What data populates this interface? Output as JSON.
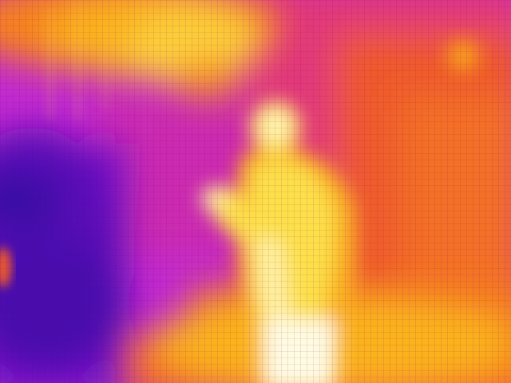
{
  "image": {
    "kind": "thermal-camera-frame",
    "palette": "iron",
    "subject": "person",
    "colors": {
      "cold_deep": "#3b0aa8",
      "cold": "#7a16c9",
      "cool": "#b01ec2",
      "warm_low": "#e0387e",
      "warm": "#f05a2c",
      "warm_high": "#f7821e",
      "hot": "#fbb21a",
      "hotter": "#fde04a",
      "hottest": "#fffbe0"
    }
  }
}
